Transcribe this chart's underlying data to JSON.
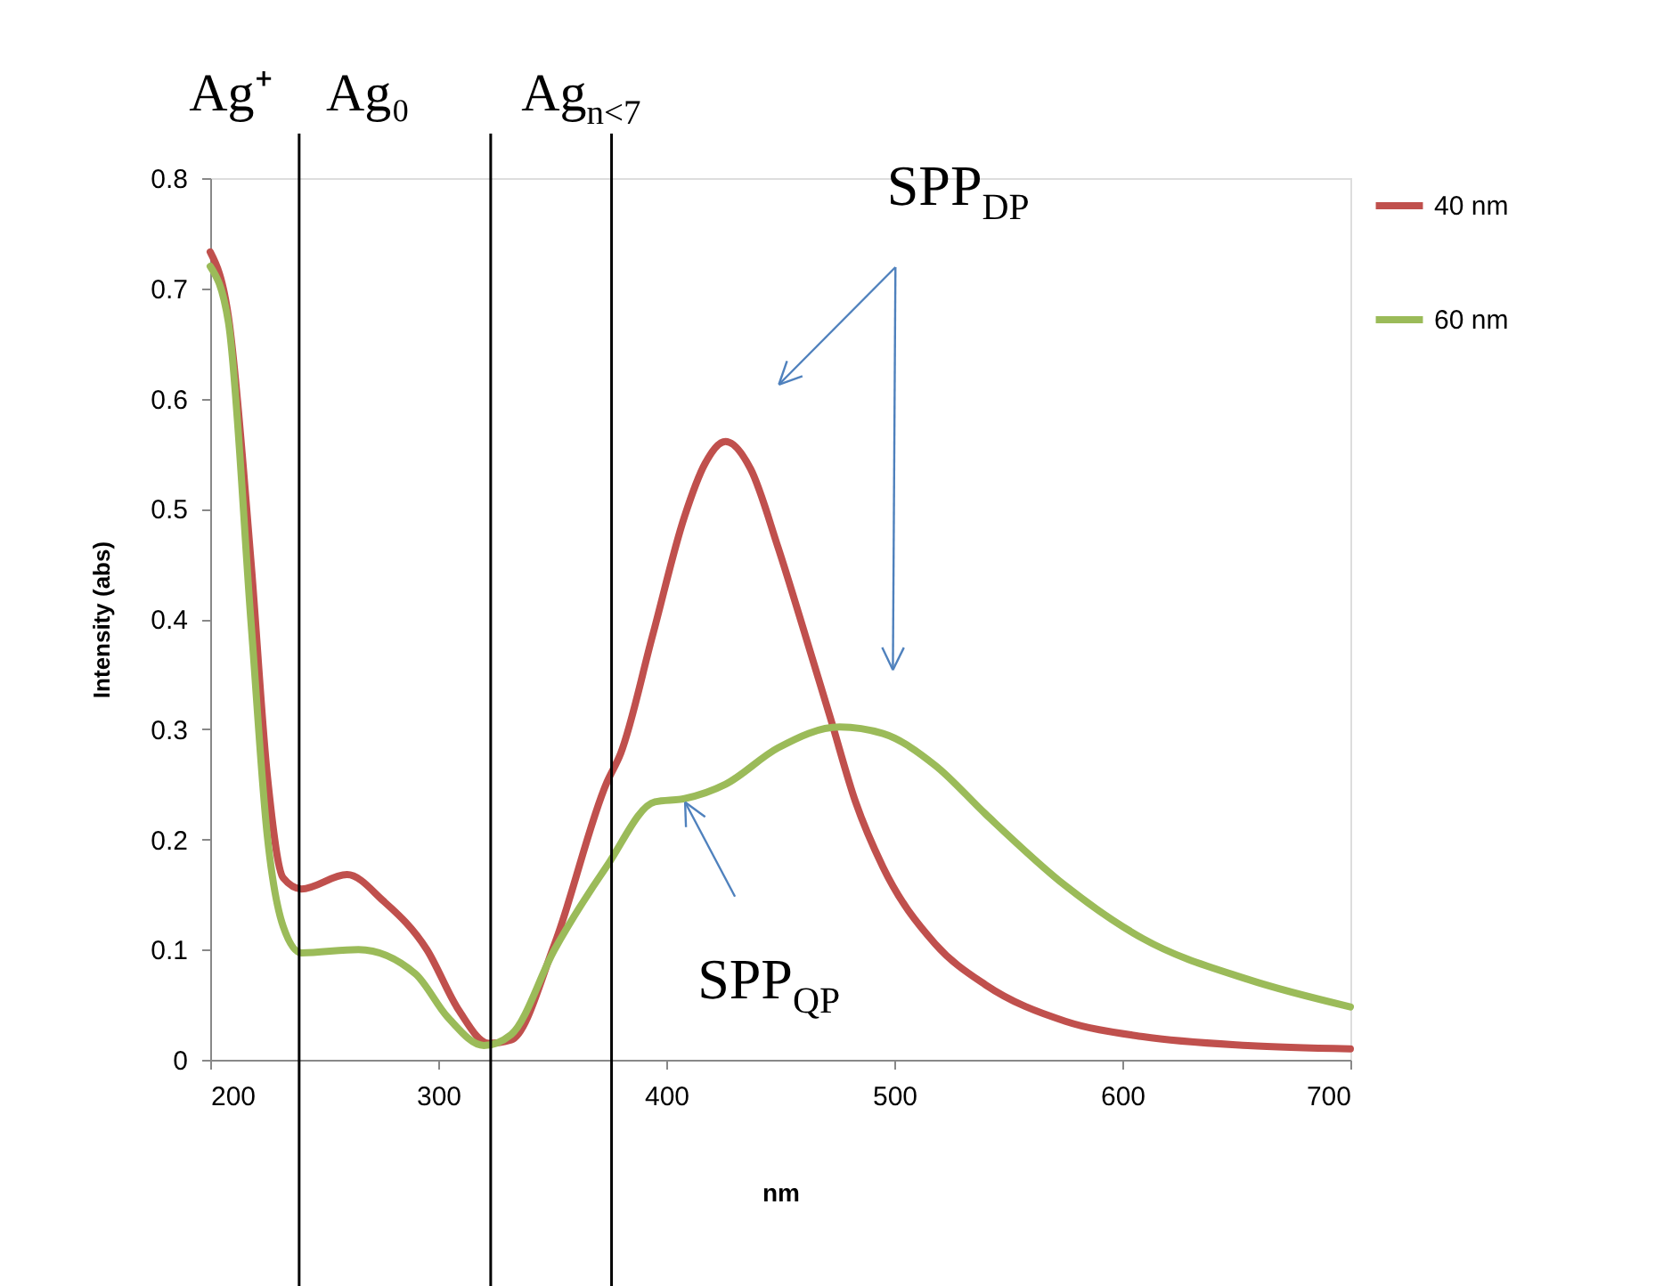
{
  "chart_data": {
    "type": "line",
    "xlabel": "nm",
    "ylabel": "Intensity (abs)",
    "xlim": [
      200,
      700
    ],
    "ylim": [
      0,
      0.8
    ],
    "xticks": [
      200,
      300,
      400,
      500,
      600,
      700
    ],
    "yticks": [
      0,
      0.1,
      0.2,
      0.3,
      0.4,
      0.5,
      0.6,
      0.7,
      0.8
    ],
    "grid": false,
    "legend": "right",
    "marker": "none",
    "line_style": "solid",
    "series": [
      {
        "name": "40 nm",
        "color": "#c0504d",
        "x": [
          200,
          208,
          218,
          225,
          232,
          240,
          260,
          276,
          295,
          309,
          322,
          332,
          351,
          374,
          380,
          394,
          408,
          417,
          426,
          437,
          449,
          461,
          472,
          483,
          495,
          518,
          540,
          575,
          609,
          655,
          700
        ],
        "values": [
          0.733,
          0.674,
          0.449,
          0.259,
          0.165,
          0.155,
          0.168,
          0.144,
          0.1,
          0.045,
          0.015,
          0.018,
          0.105,
          0.252,
          0.278,
          0.385,
          0.493,
          0.541,
          0.561,
          0.536,
          0.465,
          0.385,
          0.31,
          0.234,
          0.175,
          0.105,
          0.068,
          0.035,
          0.021,
          0.013,
          0.01
        ]
      },
      {
        "name": "60 nm",
        "color": "#9bbb59",
        "x": [
          200,
          208,
          218,
          225,
          232,
          240,
          265,
          290,
          304,
          320,
          332,
          351,
          374,
          395,
          408,
          426,
          449,
          476,
          495,
          518,
          540,
          575,
          609,
          655,
          700
        ],
        "values": [
          0.72,
          0.669,
          0.394,
          0.204,
          0.121,
          0.097,
          0.1,
          0.078,
          0.039,
          0.013,
          0.023,
          0.1,
          0.176,
          0.234,
          0.237,
          0.25,
          0.283,
          0.302,
          0.296,
          0.267,
          0.223,
          0.158,
          0.11,
          0.073,
          0.048
        ]
      }
    ],
    "ref_lines": [
      {
        "axis": "x",
        "value": 239,
        "color": "#000000"
      },
      {
        "axis": "x",
        "value": 323,
        "color": "#000000"
      },
      {
        "axis": "x",
        "value": 376,
        "color": "#000000"
      }
    ],
    "annotations": [
      "Ag⁺",
      "Ag₀",
      "Ag$_{n<7}$",
      "SPP$_{DP}$",
      {
        "text": "SPP$_{QP}$",
        "x": 402,
        "y": 0.237
      }
    ]
  }
}
